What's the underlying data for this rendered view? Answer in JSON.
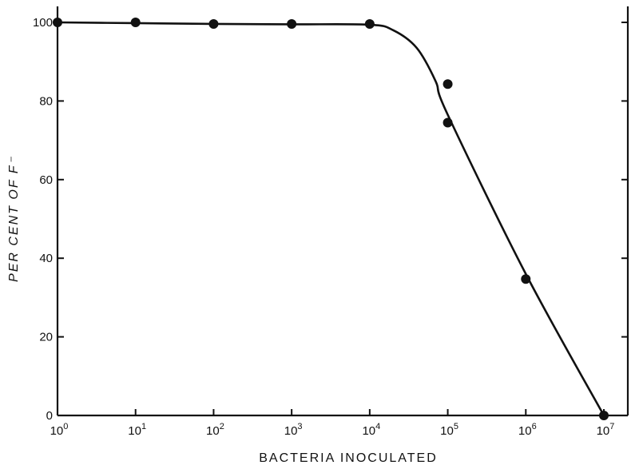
{
  "chart_data": {
    "type": "scatter",
    "xlabel": "BACTERIA INOCULATED",
    "ylabel": "PER CENT OF F⁻",
    "x_scale": "log",
    "xlim": [
      1,
      10000000
    ],
    "ylim": [
      0,
      100
    ],
    "x_ticks": [
      {
        "value": 1,
        "base": "10",
        "exp": "0"
      },
      {
        "value": 10,
        "base": "10",
        "exp": "1"
      },
      {
        "value": 100,
        "base": "10",
        "exp": "2"
      },
      {
        "value": 1000,
        "base": "10",
        "exp": "3"
      },
      {
        "value": 10000,
        "base": "10",
        "exp": "4"
      },
      {
        "value": 100000,
        "base": "10",
        "exp": "5"
      },
      {
        "value": 1000000,
        "base": "10",
        "exp": "6"
      },
      {
        "value": 10000000,
        "base": "10",
        "exp": "7"
      }
    ],
    "y_ticks": [
      {
        "value": 0,
        "label": "0"
      },
      {
        "value": 20,
        "label": "20"
      },
      {
        "value": 40,
        "label": "40"
      },
      {
        "value": 60,
        "label": "60"
      },
      {
        "value": 80,
        "label": "80"
      },
      {
        "value": 100,
        "label": "100"
      }
    ],
    "grid": false,
    "points": [
      {
        "x": 1,
        "y": 100
      },
      {
        "x": 10,
        "y": 100
      },
      {
        "x": 100,
        "y": 99.6
      },
      {
        "x": 1000,
        "y": 99.6
      },
      {
        "x": 10000,
        "y": 99.6
      },
      {
        "x": 100000,
        "y": 84.3
      },
      {
        "x": 100000,
        "y": 74.5
      },
      {
        "x": 1000000,
        "y": 34.7
      },
      {
        "x": 10000000,
        "y": 0
      }
    ],
    "fitted_curve": [
      {
        "x": 1,
        "y": 100
      },
      {
        "x": 10,
        "y": 99.8
      },
      {
        "x": 100,
        "y": 99.6
      },
      {
        "x": 1000,
        "y": 99.5
      },
      {
        "x": 10000,
        "y": 99.4
      },
      {
        "x": 20000,
        "y": 98.0
      },
      {
        "x": 40000,
        "y": 93.5
      },
      {
        "x": 70000,
        "y": 85.0
      },
      {
        "x": 100000,
        "y": 76.5
      },
      {
        "x": 1000000,
        "y": 36.0
      },
      {
        "x": 10000000,
        "y": 0
      }
    ]
  }
}
